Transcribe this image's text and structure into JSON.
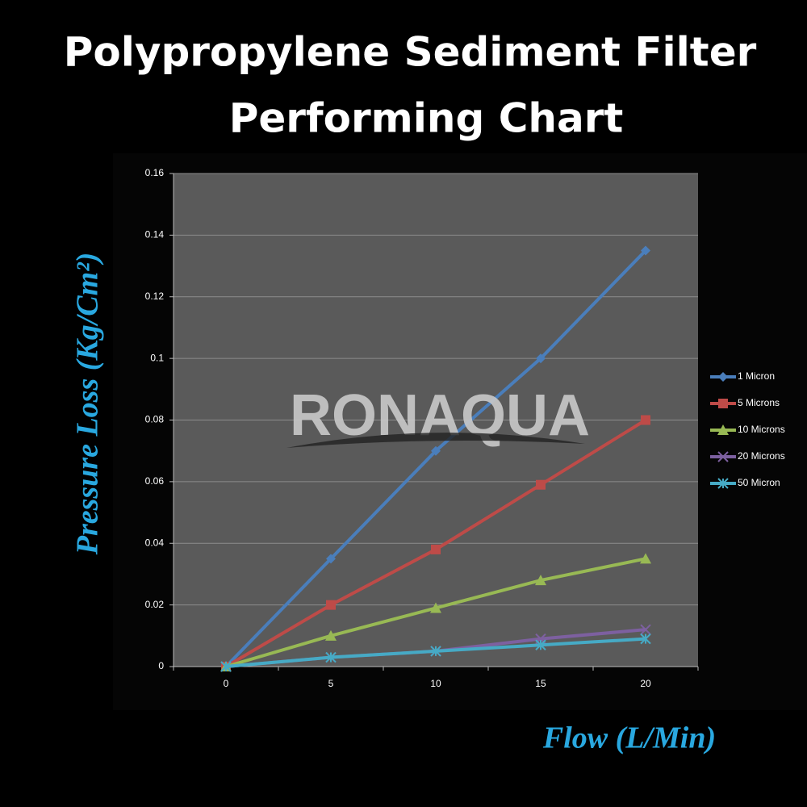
{
  "chart_data": {
    "type": "line",
    "title": [
      "Polypropylene Sediment Filter",
      "Performing Chart"
    ],
    "watermark": "RONAQUA",
    "x_label": "Flow (L/Min)",
    "y_label": "Pressure Loss (Kg/Cm²)",
    "x": [
      0,
      5,
      10,
      15,
      20
    ],
    "xlim": [
      -2.5,
      22.5
    ],
    "xticks": [
      0,
      5,
      10,
      15,
      20
    ],
    "ylim": [
      0,
      0.16
    ],
    "yticks": [
      0,
      0.02,
      0.04,
      0.06,
      0.08,
      0.1,
      0.12,
      0.14,
      0.16
    ],
    "grid": true,
    "legend": "right",
    "series": [
      {
        "name": "1 Micron",
        "color": "#4a7ebb",
        "marker": "diamond",
        "values": [
          0,
          0.035,
          0.07,
          0.1,
          0.135
        ]
      },
      {
        "name": "5 Microns",
        "color": "#be4b48",
        "marker": "square",
        "values": [
          0,
          0.02,
          0.038,
          0.059,
          0.08
        ]
      },
      {
        "name": "10 Microns",
        "color": "#98b954",
        "marker": "triangle",
        "values": [
          0,
          0.01,
          0.019,
          0.028,
          0.035
        ]
      },
      {
        "name": "20 Microns",
        "color": "#7d60a0",
        "marker": "x",
        "values": [
          0,
          0.003,
          0.005,
          0.009,
          0.012
        ]
      },
      {
        "name": "50 Micron",
        "color": "#46aac5",
        "marker": "star",
        "values": [
          0,
          0.003,
          0.005,
          0.007,
          0.009
        ]
      }
    ]
  }
}
